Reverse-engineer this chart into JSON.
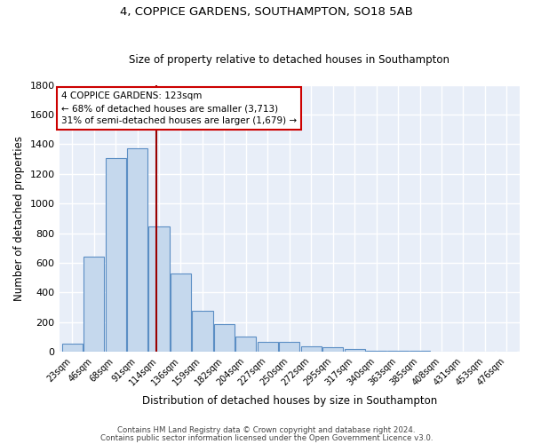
{
  "title1": "4, COPPICE GARDENS, SOUTHAMPTON, SO18 5AB",
  "title2": "Size of property relative to detached houses in Southampton",
  "xlabel": "Distribution of detached houses by size in Southampton",
  "ylabel": "Number of detached properties",
  "categories": [
    "23sqm",
    "46sqm",
    "68sqm",
    "91sqm",
    "114sqm",
    "136sqm",
    "159sqm",
    "182sqm",
    "204sqm",
    "227sqm",
    "250sqm",
    "272sqm",
    "295sqm",
    "317sqm",
    "340sqm",
    "363sqm",
    "385sqm",
    "408sqm",
    "431sqm",
    "453sqm",
    "476sqm"
  ],
  "values": [
    55,
    645,
    1305,
    1375,
    845,
    530,
    275,
    185,
    105,
    65,
    65,
    35,
    30,
    20,
    10,
    10,
    10,
    0,
    0,
    0,
    0
  ],
  "bar_color": "#c5d8ed",
  "bar_edge_color": "#5b8ec4",
  "background_color": "#e8eef8",
  "grid_color": "#ffffff",
  "annotation_box_text": "4 COPPICE GARDENS: 123sqm\n← 68% of detached houses are smaller (3,713)\n31% of semi-detached houses are larger (1,679) →",
  "annotation_box_color": "#ffffff",
  "annotation_box_edge_color": "#cc0000",
  "ylim": [
    0,
    1800
  ],
  "yticks": [
    0,
    200,
    400,
    600,
    800,
    1000,
    1200,
    1400,
    1600,
    1800
  ],
  "footnote1": "Contains HM Land Registry data © Crown copyright and database right 2024.",
  "footnote2": "Contains public sector information licensed under the Open Government Licence v3.0."
}
